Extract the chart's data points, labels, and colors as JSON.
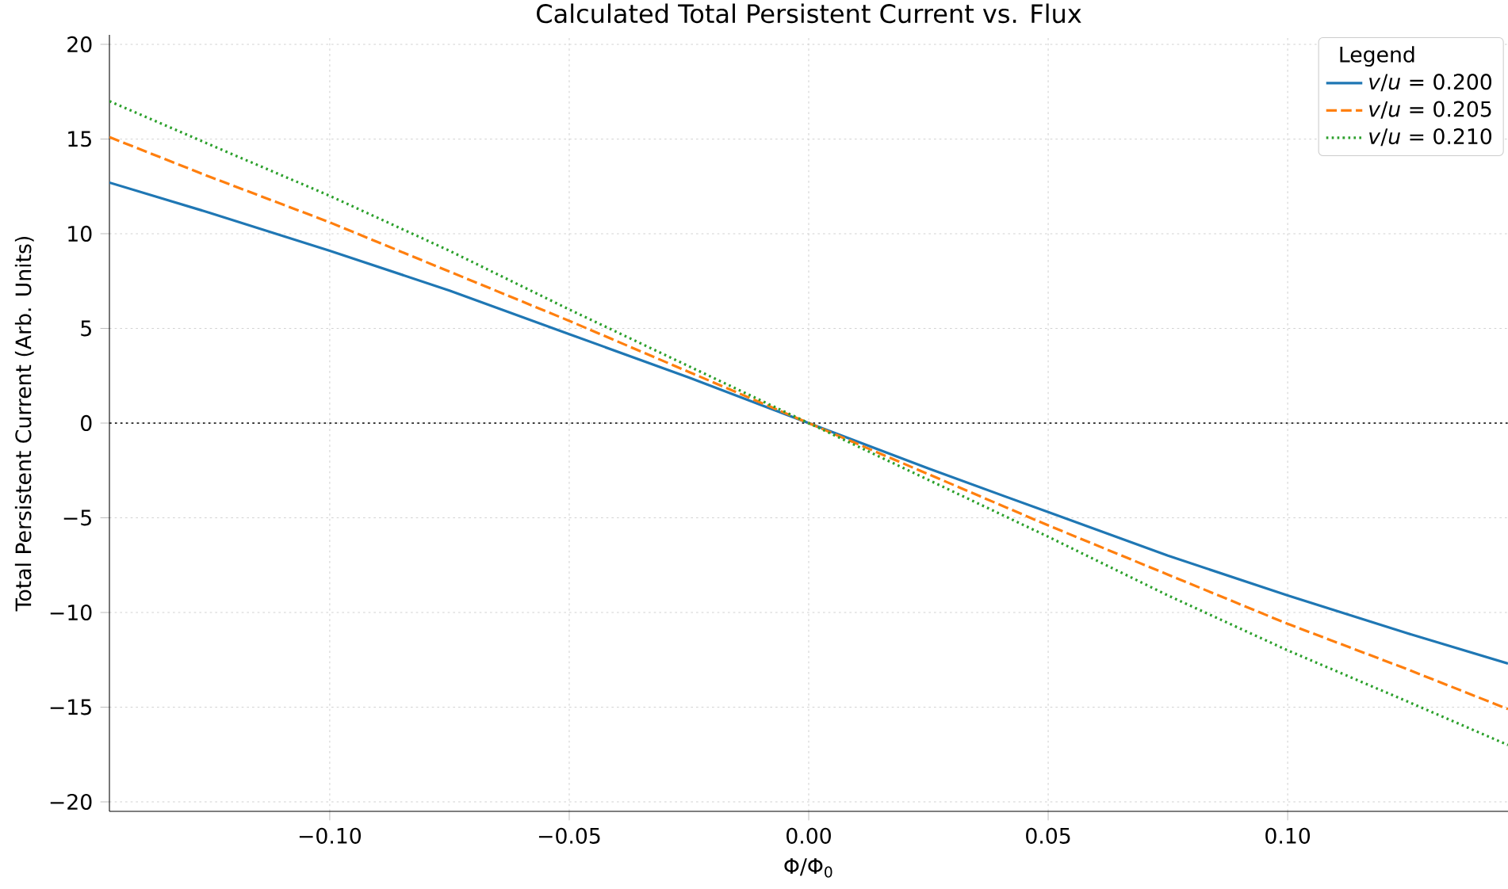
{
  "chart_data": {
    "type": "line",
    "title": "Calculated Total Persistent Current vs. Flux",
    "xlabel": "Φ/Φ$_{0}$",
    "ylabel": "Total Persistent Current (Arb. Units)",
    "legend_title": "Legend",
    "legend": "top right",
    "grid": true,
    "xlim": [
      -0.146,
      0.146
    ],
    "ylim": [
      -20.5,
      20.5
    ],
    "xticks": [
      {
        "value": -0.1,
        "label": "−0.10"
      },
      {
        "value": -0.05,
        "label": "−0.05"
      },
      {
        "value": 0,
        "label": "0.00"
      },
      {
        "value": 0.05,
        "label": "0.05"
      },
      {
        "value": 0.1,
        "label": "0.10"
      }
    ],
    "yticks": [
      {
        "value": -20,
        "label": "−20"
      },
      {
        "value": -15,
        "label": "−15"
      },
      {
        "value": -10,
        "label": "−10"
      },
      {
        "value": -5,
        "label": "−5"
      },
      {
        "value": 0,
        "label": "0"
      },
      {
        "value": 5,
        "label": "5"
      },
      {
        "value": 10,
        "label": "10"
      },
      {
        "value": 15,
        "label": "15"
      },
      {
        "value": 20,
        "label": "20"
      }
    ],
    "ref_lines": [
      {
        "axis": "y",
        "value": 0,
        "color": "#000000",
        "line_style": "dotted"
      }
    ],
    "x": [
      -0.146,
      -0.125,
      -0.1,
      -0.075,
      -0.05,
      -0.025,
      0,
      0.025,
      0.05,
      0.075,
      0.1,
      0.125,
      0.146
    ],
    "series": [
      {
        "name": "*v*/*u* = 0.200",
        "color": "#1f77b4",
        "line_style": "solid",
        "values": [
          12.7,
          11.1,
          9.1,
          7.0,
          4.7,
          2.4,
          0,
          -2.4,
          -4.7,
          -7.0,
          -9.1,
          -11.1,
          -12.7
        ]
      },
      {
        "name": "*v*/*u* = 0.205",
        "color": "#ff7f0e",
        "line_style": "dashed",
        "values": [
          15.1,
          13.0,
          10.6,
          8.0,
          5.4,
          2.7,
          0,
          -2.7,
          -5.4,
          -8.0,
          -10.6,
          -13.0,
          -15.1
        ]
      },
      {
        "name": "*v*/*u* = 0.210",
        "color": "#2ca02c",
        "line_style": "dotted",
        "values": [
          17.0,
          14.7,
          12.0,
          9.1,
          6.0,
          3.0,
          0,
          -3.0,
          -6.0,
          -9.1,
          -12.0,
          -14.7,
          -17.0
        ]
      }
    ]
  }
}
